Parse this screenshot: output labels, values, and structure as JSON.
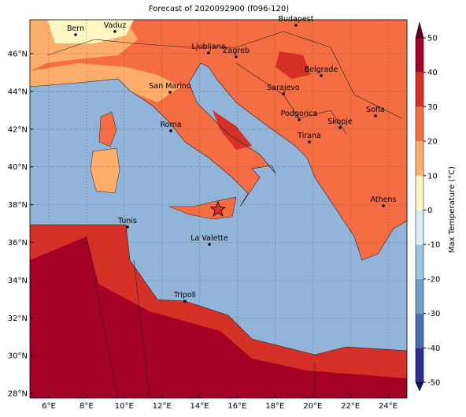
{
  "map": {
    "title": "Forecast of 2020092900 (f096-120)",
    "xlim": [
      5,
      25
    ],
    "ylim": [
      27.75,
      47.8
    ],
    "xticks": [
      {
        "value": 6,
        "label": "6°E"
      },
      {
        "value": 8,
        "label": "8°E"
      },
      {
        "value": 10,
        "label": "10°E"
      },
      {
        "value": 12,
        "label": "12°E"
      },
      {
        "value": 14,
        "label": "14°E"
      },
      {
        "value": 16,
        "label": "16°E"
      },
      {
        "value": 18,
        "label": "18°E"
      },
      {
        "value": 20,
        "label": "20°E"
      },
      {
        "value": 22,
        "label": "22°E"
      },
      {
        "value": 24,
        "label": "24°E"
      }
    ],
    "yticks": [
      {
        "value": 28,
        "label": "28°N"
      },
      {
        "value": 30,
        "label": "30°N"
      },
      {
        "value": 32,
        "label": "32°N"
      },
      {
        "value": 34,
        "label": "34°N"
      },
      {
        "value": 36,
        "label": "36°N"
      },
      {
        "value": 38,
        "label": "38°N"
      },
      {
        "value": 40,
        "label": "40°N"
      },
      {
        "value": 42,
        "label": "42°N"
      },
      {
        "value": 44,
        "label": "44°N"
      },
      {
        "value": 46,
        "label": "46°N"
      }
    ]
  },
  "cities": [
    "Bern",
    "Vaduz",
    "Budapest",
    "Ljubljana",
    "Zagreb",
    "Belgrade",
    "San Marino",
    "Sarajevo",
    "Sofia",
    "Roma",
    "Podgorica",
    "Skopje",
    "Tirana",
    "Athens",
    "Tunis",
    "La Valette",
    "Tripoli"
  ],
  "colorbar": {
    "label": "Max Temperature (°C)",
    "levels": [
      -50,
      -40,
      -30,
      -20,
      -10,
      0,
      10,
      20,
      30,
      40,
      50
    ],
    "colors": [
      "#2b2f8f",
      "#4a6fb0",
      "#6f9fcc",
      "#9ec6e0",
      "#d9eef4",
      "#fff6c4",
      "#fdae6b",
      "#f46d43",
      "#d73027",
      "#a50026"
    ],
    "ticks": [
      -50,
      -40,
      -30,
      -20,
      -10,
      0,
      10,
      20,
      30,
      40,
      50
    ]
  }
}
